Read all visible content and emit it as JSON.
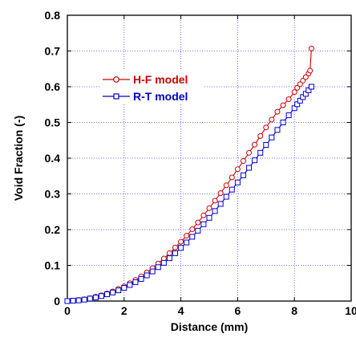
{
  "chart_data": {
    "type": "line",
    "title": "",
    "xlabel": "Distance (mm)",
    "ylabel": "Void Fraction (-)",
    "xlim": [
      0,
      10
    ],
    "ylim": [
      0,
      0.8
    ],
    "xticks": [
      "0",
      "2",
      "4",
      "6",
      "8",
      "10"
    ],
    "yticks": [
      "0",
      "0.1",
      "0.2",
      "0.3",
      "0.4",
      "0.5",
      "0.6",
      "0.7",
      "0.8"
    ],
    "grid": true,
    "legend_position": "upper-left",
    "series": [
      {
        "name": "H-F model",
        "color": "#cc0000",
        "marker": "circle",
        "x": [
          0,
          0.2,
          0.4,
          0.6,
          0.8,
          1.0,
          1.2,
          1.4,
          1.6,
          1.8,
          2.0,
          2.2,
          2.4,
          2.6,
          2.8,
          3.0,
          3.2,
          3.4,
          3.6,
          3.8,
          4.0,
          4.2,
          4.4,
          4.6,
          4.8,
          5.0,
          5.2,
          5.4,
          5.6,
          5.8,
          6.0,
          6.2,
          6.4,
          6.6,
          6.8,
          7.0,
          7.2,
          7.4,
          7.6,
          7.8,
          8.0,
          8.1,
          8.2,
          8.3,
          8.4,
          8.5,
          8.55,
          8.6
        ],
        "y": [
          0.0,
          0.001,
          0.003,
          0.005,
          0.008,
          0.012,
          0.016,
          0.021,
          0.027,
          0.034,
          0.041,
          0.05,
          0.059,
          0.069,
          0.08,
          0.092,
          0.105,
          0.119,
          0.134,
          0.15,
          0.166,
          0.183,
          0.201,
          0.22,
          0.24,
          0.26,
          0.281,
          0.302,
          0.324,
          0.346,
          0.369,
          0.392,
          0.415,
          0.438,
          0.462,
          0.486,
          0.508,
          0.53,
          0.548,
          0.565,
          0.585,
          0.597,
          0.607,
          0.617,
          0.627,
          0.637,
          0.645,
          0.707
        ]
      },
      {
        "name": "R-T model",
        "color": "#0000cc",
        "marker": "square",
        "x": [
          0,
          0.2,
          0.4,
          0.6,
          0.8,
          1.0,
          1.2,
          1.4,
          1.6,
          1.8,
          2.0,
          2.2,
          2.4,
          2.6,
          2.8,
          3.0,
          3.2,
          3.4,
          3.6,
          3.8,
          4.0,
          4.2,
          4.4,
          4.6,
          4.8,
          5.0,
          5.2,
          5.4,
          5.6,
          5.8,
          6.0,
          6.2,
          6.4,
          6.6,
          6.8,
          7.0,
          7.2,
          7.4,
          7.6,
          7.8,
          8.0,
          8.1,
          8.2,
          8.3,
          8.4,
          8.5,
          8.6
        ],
        "y": [
          0.0,
          0.001,
          0.002,
          0.004,
          0.007,
          0.01,
          0.014,
          0.019,
          0.024,
          0.03,
          0.037,
          0.045,
          0.053,
          0.062,
          0.072,
          0.083,
          0.095,
          0.107,
          0.12,
          0.134,
          0.149,
          0.164,
          0.18,
          0.197,
          0.215,
          0.233,
          0.252,
          0.272,
          0.292,
          0.312,
          0.332,
          0.352,
          0.373,
          0.394,
          0.415,
          0.437,
          0.458,
          0.479,
          0.5,
          0.52,
          0.54,
          0.551,
          0.561,
          0.571,
          0.58,
          0.59,
          0.6
        ]
      }
    ]
  }
}
